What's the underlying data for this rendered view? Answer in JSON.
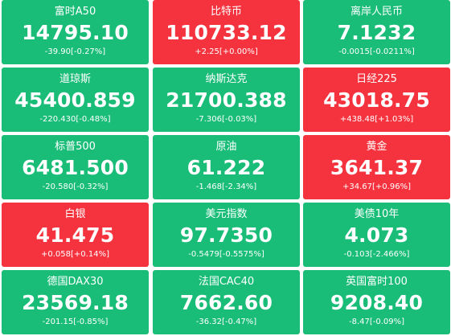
{
  "colors": {
    "up": "#f5333f",
    "down": "#19bd78",
    "text": "#ffffff"
  },
  "tiles": [
    {
      "id": "ftse-a50",
      "name": "富时A50",
      "price": "14795.10",
      "change": "-39.90[-0.27%]",
      "direction": "down"
    },
    {
      "id": "bitcoin",
      "name": "比特币",
      "price": "110733.12",
      "change": "+2.25[+0.00%]",
      "direction": "up"
    },
    {
      "id": "offshore-cny",
      "name": "离岸人民币",
      "price": "7.1232",
      "change": "-0.0015[-0.0211%]",
      "direction": "down"
    },
    {
      "id": "dow-jones",
      "name": "道琼斯",
      "price": "45400.859",
      "change": "-220.430[-0.48%]",
      "direction": "down"
    },
    {
      "id": "nasdaq",
      "name": "纳斯达克",
      "price": "21700.388",
      "change": "-7.306[-0.03%]",
      "direction": "down"
    },
    {
      "id": "nikkei-225",
      "name": "日经225",
      "price": "43018.75",
      "change": "+438.48[+1.03%]",
      "direction": "up"
    },
    {
      "id": "sp500",
      "name": "标普500",
      "price": "6481.500",
      "change": "-20.580[-0.32%]",
      "direction": "down"
    },
    {
      "id": "crude-oil",
      "name": "原油",
      "price": "61.222",
      "change": "-1.468[-2.34%]",
      "direction": "down"
    },
    {
      "id": "gold",
      "name": "黄金",
      "price": "3641.37",
      "change": "+34.67[+0.96%]",
      "direction": "up"
    },
    {
      "id": "silver",
      "name": "白银",
      "price": "41.475",
      "change": "+0.058[+0.14%]",
      "direction": "up"
    },
    {
      "id": "usd-index",
      "name": "美元指数",
      "price": "97.7350",
      "change": "-0.5479[-0.5575%]",
      "direction": "down"
    },
    {
      "id": "us-10y",
      "name": "美债10年",
      "price": "4.073",
      "change": "-0.103[-2.466%]",
      "direction": "down"
    },
    {
      "id": "dax30",
      "name": "德国DAX30",
      "price": "23569.18",
      "change": "-201.15[-0.85%]",
      "direction": "down"
    },
    {
      "id": "cac40",
      "name": "法国CAC40",
      "price": "7662.60",
      "change": "-36.32[-0.47%]",
      "direction": "down"
    },
    {
      "id": "ftse100",
      "name": "英国富时100",
      "price": "9208.40",
      "change": "-8.47[-0.09%]",
      "direction": "down"
    }
  ]
}
